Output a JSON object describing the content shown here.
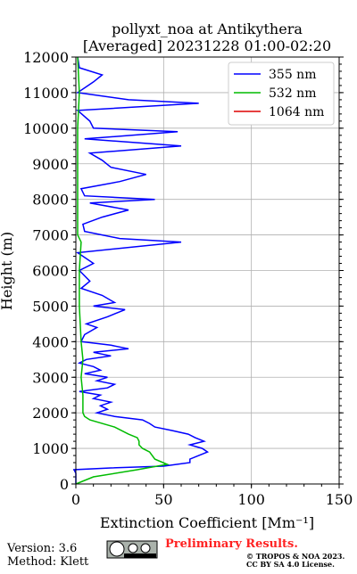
{
  "chart_data": {
    "type": "line",
    "title": [
      "pollyxt_noa at Antikythera",
      "[Averaged] 20231228 01:00-02:20"
    ],
    "x_label": "Extinction Coefficient [Mm⁻¹]",
    "y_label": "Height (m)",
    "xlim": [
      0,
      150
    ],
    "xticks": [
      0,
      50,
      100,
      150
    ],
    "ylim": [
      0,
      12000
    ],
    "yticks": [
      0,
      1000,
      2000,
      3000,
      4000,
      5000,
      6000,
      7000,
      8000,
      9000,
      10000,
      11000,
      12000
    ],
    "grid": true,
    "legend": "upper right",
    "series": [
      {
        "name": "355 nm",
        "color": "#0000ff",
        "y": [
          0,
          300,
          400,
          450,
          500,
          600,
          700,
          800,
          900,
          1000,
          1100,
          1200,
          1300,
          1400,
          1500,
          1600,
          1700,
          1800,
          1900,
          2000,
          2100,
          2200,
          2300,
          2400,
          2500,
          2600,
          2700,
          2800,
          2900,
          3000,
          3100,
          3200,
          3300,
          3400,
          3500,
          3600,
          3700,
          3800,
          3900,
          4000,
          4200,
          4400,
          4500,
          4700,
          4900,
          5000,
          5100,
          5300,
          5500,
          5700,
          6000,
          6200,
          6500,
          6800,
          6900,
          7000,
          7100,
          7300,
          7500,
          7700,
          7900,
          8000,
          8100,
          8300,
          8500,
          8700,
          8900,
          9100,
          9300,
          9500,
          9700,
          9900,
          10000,
          10200,
          10500,
          10700,
          10800,
          11000,
          11300,
          11500,
          11700,
          12000
        ],
        "values": [
          0,
          0,
          -1,
          20,
          50,
          65,
          65,
          70,
          75,
          72,
          65,
          73,
          68,
          64,
          55,
          45,
          42,
          38,
          22,
          12,
          18,
          14,
          20,
          10,
          14,
          2,
          18,
          22,
          12,
          18,
          5,
          14,
          10,
          2,
          6,
          20,
          10,
          30,
          20,
          3,
          5,
          12,
          6,
          18,
          28,
          10,
          22,
          15,
          3,
          8,
          2,
          10,
          1,
          60,
          25,
          15,
          5,
          4,
          15,
          30,
          8,
          45,
          5,
          3,
          25,
          40,
          20,
          15,
          8,
          60,
          5,
          58,
          10,
          8,
          1,
          70,
          30,
          1,
          10,
          15,
          2,
          1
        ]
      },
      {
        "name": "532 nm",
        "color": "#00bb00",
        "y": [
          0,
          200,
          400,
          550,
          700,
          900,
          1000,
          1100,
          1200,
          1300,
          1400,
          1600,
          1800,
          1900,
          2000,
          2500,
          3000,
          3500,
          4000,
          5000,
          6000,
          6800,
          7000,
          8000,
          9000,
          10000,
          11000,
          12000
        ],
        "values": [
          0,
          10,
          35,
          52,
          45,
          42,
          38,
          36,
          36,
          35,
          30,
          22,
          8,
          5,
          4,
          4,
          3,
          4,
          3,
          2,
          2,
          3,
          1,
          1,
          1,
          1,
          2,
          1
        ]
      },
      {
        "name": "1064 nm",
        "color": "#dd0000",
        "y": [],
        "values": []
      }
    ],
    "footer": {
      "version": "Version: 3.6",
      "method": "Method: Klett",
      "preliminary": "Preliminary Results.",
      "copyright": [
        "© TROPOS & NOA 2023.",
        "CC BY SA 4.0 License."
      ]
    }
  }
}
